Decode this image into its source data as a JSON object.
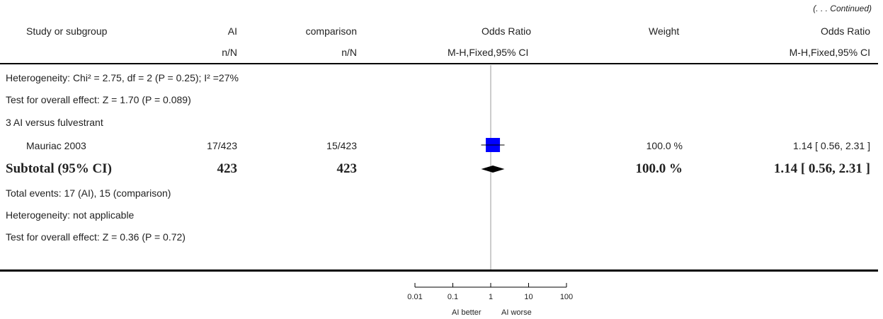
{
  "header": {
    "continued": "(. . . Continued)",
    "col_study": "Study or subgroup",
    "col_ai": "AI",
    "col_comparison": "comparison",
    "col_or": "Odds Ratio",
    "col_weight": "Weight",
    "col_or_right": "Odds Ratio",
    "sub_ai": "n/N",
    "sub_comparison": "n/N",
    "sub_or": "M-H,Fixed,95% CI",
    "sub_or_right": "M-H,Fixed,95% CI"
  },
  "rows": {
    "heterogeneity_prev": "Heterogeneity: Chi² = 2.75, df = 2 (P = 0.25); I² =27%",
    "overall_prev": "Test for overall effect: Z = 1.70 (P = 0.089)",
    "subgroup_title": "3 AI versus fulvestrant",
    "study": {
      "name": "Mauriac 2003",
      "ai": "17/423",
      "comparison": "15/423",
      "weight": "100.0 %",
      "or_text": "1.14 [ 0.56, 2.31 ]"
    },
    "subtotal": {
      "label": "Subtotal (95% CI)",
      "ai": "423",
      "comparison": "423",
      "weight": "100.0 %",
      "or_text": "1.14 [ 0.56, 2.31 ]"
    },
    "total_events": "Total events: 17 (AI), 15 (comparison)",
    "heterogeneity": "Heterogeneity: not applicable",
    "overall": "Test for overall effect: Z = 0.36 (P = 0.72)"
  },
  "axis": {
    "ticks": [
      "0.01",
      "0.1",
      "1",
      "10",
      "100"
    ],
    "left_label": "AI better",
    "right_label": "AI worse"
  },
  "chart_data": {
    "type": "forest",
    "scale": "log",
    "xlim": [
      0.01,
      100
    ],
    "tick_values": [
      0.01,
      0.1,
      1,
      10,
      100
    ],
    "studies": [
      {
        "name": "Mauriac 2003",
        "or": 1.14,
        "lower": 0.56,
        "upper": 2.31,
        "weight": 100.0
      }
    ],
    "subtotal": {
      "or": 1.14,
      "lower": 0.56,
      "upper": 2.31
    },
    "colors": {
      "study_box": "#0000ff",
      "diamond": "#000000",
      "axis": "#000000",
      "null_line": "#999999"
    }
  }
}
